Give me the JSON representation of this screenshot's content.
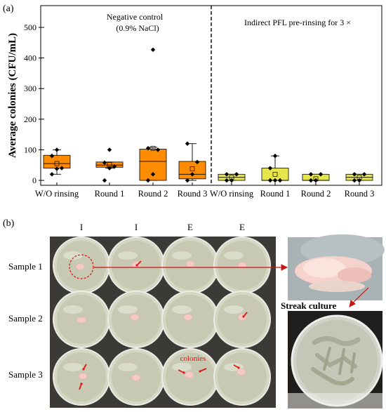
{
  "panel_a_label": "(a)",
  "panel_b_label": "(b)",
  "chart_data": {
    "type": "box",
    "ylabel": "Average colonies (CFU/mL)",
    "xlabel": "",
    "ylim": [
      0,
      530
    ],
    "yticks": [
      0,
      100,
      200,
      300,
      400,
      500
    ],
    "grid": false,
    "groups": [
      {
        "label": "Negative control",
        "sublabel": "(0.9% NaCl)",
        "color": "#ff8c00"
      },
      {
        "label": "Indirect PFL pre-rinsing for 3 ×",
        "sublabel": "",
        "color": "#e6e64c"
      }
    ],
    "categories": [
      "W/O rinsing",
      "Round 1",
      "Round 2",
      "Round 3",
      "W/O rinsing",
      "Round 1",
      "Round 2",
      "Round 3"
    ],
    "boxes": [
      {
        "group": 0,
        "whisker_low": 20,
        "q1": 40,
        "median": 55,
        "q3": 82,
        "whisker_high": 100,
        "mean": 55,
        "points": [
          20,
          38,
          40,
          80,
          100
        ]
      },
      {
        "group": 0,
        "whisker_low": 40,
        "q1": 43,
        "median": 50,
        "q3": 60,
        "whisker_high": 60,
        "mean": 52,
        "points": [
          0,
          40,
          45,
          58,
          100
        ]
      },
      {
        "group": 0,
        "whisker_low": 0,
        "q1": 0,
        "median": 62,
        "q3": 102,
        "whisker_high": 108,
        "mean": 105,
        "points": [
          0,
          20,
          100,
          105,
          427
        ]
      },
      {
        "group": 0,
        "whisker_low": 0,
        "q1": 5,
        "median": 20,
        "q3": 62,
        "whisker_high": 120,
        "mean": 38,
        "points": [
          0,
          20,
          60,
          120
        ]
      },
      {
        "group": 1,
        "whisker_low": 0,
        "q1": 0,
        "median": 10,
        "q3": 20,
        "whisker_high": 20,
        "mean": 10,
        "points": [
          0,
          0,
          20,
          20
        ]
      },
      {
        "group": 1,
        "whisker_low": 0,
        "q1": 0,
        "median": 0,
        "q3": 40,
        "whisker_high": 80,
        "mean": 20,
        "points": [
          0,
          0,
          0,
          40,
          80
        ]
      },
      {
        "group": 1,
        "whisker_low": 0,
        "q1": 0,
        "median": 0,
        "q3": 20,
        "whisker_high": 20,
        "mean": 5,
        "points": [
          0,
          0,
          20,
          20
        ]
      },
      {
        "group": 1,
        "whisker_low": 0,
        "q1": 0,
        "median": 10,
        "q3": 20,
        "whisker_high": 20,
        "mean": 10,
        "points": [
          0,
          0,
          20,
          20
        ]
      }
    ]
  },
  "photos": {
    "column_labels": [
      "I",
      "I",
      "E",
      "E"
    ],
    "row_labels": [
      "Sample 1",
      "Sample 2",
      "Sample 3"
    ],
    "annotation": "colonies",
    "streak_label": "Streak culture"
  }
}
